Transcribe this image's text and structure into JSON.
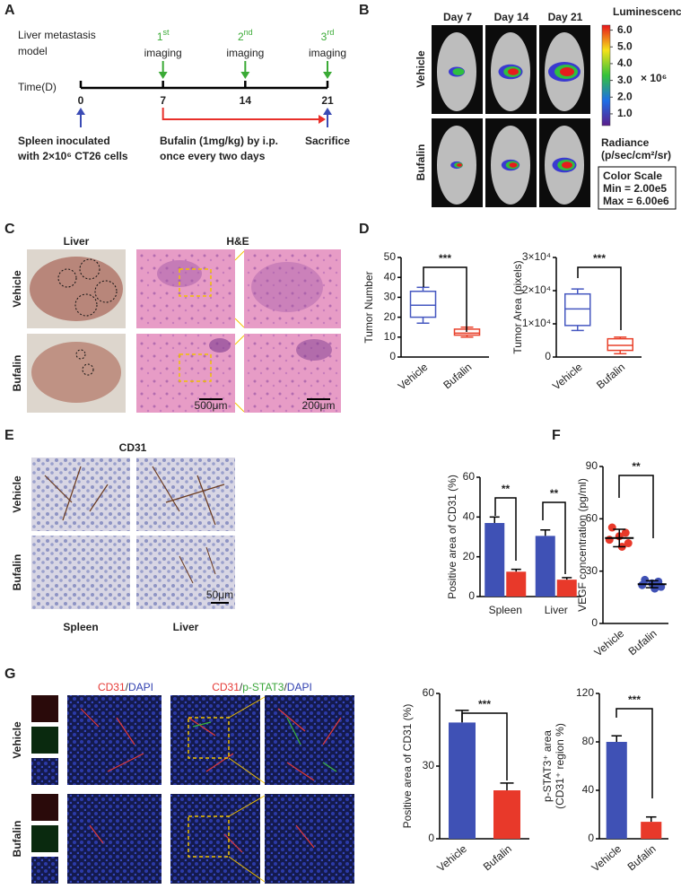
{
  "panel_labels": [
    "A",
    "B",
    "C",
    "D",
    "E",
    "F",
    "G"
  ],
  "panel_a": {
    "title_lines": [
      "Liver metastasis",
      "model"
    ],
    "axis_label": "Time(D)",
    "ticks": [
      0,
      7,
      14,
      21
    ],
    "imaging": [
      {
        "num": "1",
        "sup": "st",
        "text": "imaging"
      },
      {
        "num": "2",
        "sup": "nd",
        "text": "imaging"
      },
      {
        "num": "3",
        "sup": "rd",
        "text": "imaging"
      }
    ],
    "inoculation_lines": [
      "Spleen inoculated",
      "with 2×10⁶ CT26 cells"
    ],
    "treatment_lines": [
      "Bufalin (1mg/kg) by i.p.",
      "once every two days"
    ],
    "end_label": "Sacrifice"
  },
  "panel_b": {
    "days": [
      "Day 7",
      "Day 14",
      "Day 21"
    ],
    "groups": [
      "Vehicle",
      "Bufalin"
    ],
    "colorbar": {
      "title": "Luminescence",
      "lim": [
        0.3,
        6.3
      ],
      "ticks": [
        {
          "value": 6,
          "label": "6.0"
        },
        {
          "value": 5,
          "label": "5.0"
        },
        {
          "value": 4,
          "label": "4.0"
        },
        {
          "value": 3,
          "label": "3.0"
        },
        {
          "value": 2,
          "label": "2.0"
        },
        {
          "value": 1,
          "label": "1.0"
        }
      ],
      "multiplier": "× 10⁶",
      "unit_lines": [
        "Radiance",
        "(p/sec/cm²/sr)"
      ],
      "scale_box": [
        "Color Scale",
        "Min = 2.00e5",
        "Max = 6.00e6"
      ]
    }
  },
  "panel_c": {
    "columns": [
      "Liver",
      "H&E"
    ],
    "groups": [
      "Vehicle",
      "Bufalin"
    ],
    "scale_bars": [
      "500μm",
      "200μm"
    ]
  },
  "panel_e": {
    "title": "CD31",
    "groups": [
      "Vehicle",
      "Bufalin"
    ],
    "columns": [
      "Spleen",
      "Liver"
    ],
    "scale_bar": "50μm"
  },
  "panel_g": {
    "titles": [
      [
        {
          "text": "CD31",
          "color": "#e53935"
        },
        {
          "text": "/",
          "color": "#333333"
        },
        {
          "text": "DAPI",
          "color": "#3040b0"
        }
      ],
      [
        {
          "text": "CD31",
          "color": "#e53935"
        },
        {
          "text": "/",
          "color": "#333333"
        },
        {
          "text": "p-STAT3",
          "color": "#3aa63a"
        },
        {
          "text": "/",
          "color": "#333333"
        },
        {
          "text": "DAPI",
          "color": "#3040b0"
        }
      ]
    ],
    "groups": [
      "Vehicle",
      "Bufalin"
    ]
  },
  "chart_data": [
    {
      "type": "box",
      "ylabel": [
        "Tumor  Number"
      ],
      "categories": [
        "Vehicle",
        "Bufalin"
      ],
      "colors": [
        "#4557c0",
        "#e8402a"
      ],
      "boxes": [
        {
          "min": 17,
          "q1": 20,
          "median": 26,
          "q3": 33,
          "max": 35
        },
        {
          "min": 10,
          "q1": 11,
          "median": 12,
          "q3": 14,
          "max": 15
        }
      ],
      "ylim": [
        0,
        50
      ],
      "yticks": [
        0,
        10,
        20,
        30,
        40,
        50
      ],
      "significance": [
        "***"
      ]
    },
    {
      "type": "box",
      "ylabel": [
        "Tumor Area (pixels)"
      ],
      "categories": [
        "Vehicle",
        "Bufalin"
      ],
      "colors": [
        "#4557c0",
        "#e8402a"
      ],
      "boxes": [
        {
          "min": 8000,
          "q1": 9500,
          "median": 14500,
          "q3": 19000,
          "max": 20500
        },
        {
          "min": 1000,
          "q1": 2000,
          "median": 3500,
          "q3": 5500,
          "max": 6000
        }
      ],
      "ylim": [
        0,
        30000
      ],
      "yticks": [
        0,
        {
          "value": 10000,
          "label": "1×10⁴"
        },
        {
          "value": 20000,
          "label": "2×10⁴"
        },
        {
          "value": 30000,
          "label": "3×10⁴"
        }
      ],
      "significance": [
        "***"
      ]
    },
    {
      "type": "bar",
      "ylabel": [
        "Positive area of CD31 (%)"
      ],
      "categories": [
        "Spleen",
        "Liver"
      ],
      "series": [
        {
          "color": "#3f51b5",
          "values": [
            37,
            30.5
          ],
          "errors": [
            3,
            3
          ]
        },
        {
          "color": "#e8392a",
          "values": [
            12.5,
            8.5
          ],
          "errors": [
            1.2,
            1
          ]
        }
      ],
      "ylim": [
        0,
        60
      ],
      "yticks": [
        0,
        20,
        40,
        60
      ],
      "significance": [
        "**",
        "**"
      ]
    },
    {
      "type": "dot",
      "ylabel": [
        "VEGF concentration (pg/ml)"
      ],
      "categories": [
        "Vehicle",
        "Bufalin"
      ],
      "colors": [
        "#e8392a",
        "#3f51b5"
      ],
      "points": [
        [
          55,
          52,
          50,
          48,
          46,
          44
        ],
        [
          25,
          24,
          23,
          22,
          21,
          20
        ]
      ],
      "means": [
        49,
        22.5
      ],
      "sds": [
        5,
        2
      ],
      "ylim": [
        0,
        90
      ],
      "yticks": [
        0,
        30,
        60,
        90
      ],
      "significance": [
        "**"
      ]
    },
    {
      "type": "bar",
      "ylabel": [
        "Positive area of CD31 (%)"
      ],
      "categories": [
        "Vehicle",
        "Bufalin"
      ],
      "colors": [
        "#3f51b5",
        "#e8392a"
      ],
      "values": [
        48,
        20
      ],
      "errors": [
        5,
        3
      ],
      "ylim": [
        0,
        60
      ],
      "yticks": [
        0,
        30,
        60
      ],
      "significance": [
        "***"
      ]
    },
    {
      "type": "bar",
      "ylabel": [
        "p-STAT3⁺ area",
        "(CD31⁺ region %)"
      ],
      "categories": [
        "Vehicle",
        "Bufalin"
      ],
      "colors": [
        "#3f51b5",
        "#e8392a"
      ],
      "values": [
        80,
        14
      ],
      "errors": [
        5,
        4
      ],
      "ylim": [
        0,
        120
      ],
      "yticks": [
        0,
        40,
        80,
        120
      ],
      "significance": [
        "***"
      ]
    }
  ]
}
